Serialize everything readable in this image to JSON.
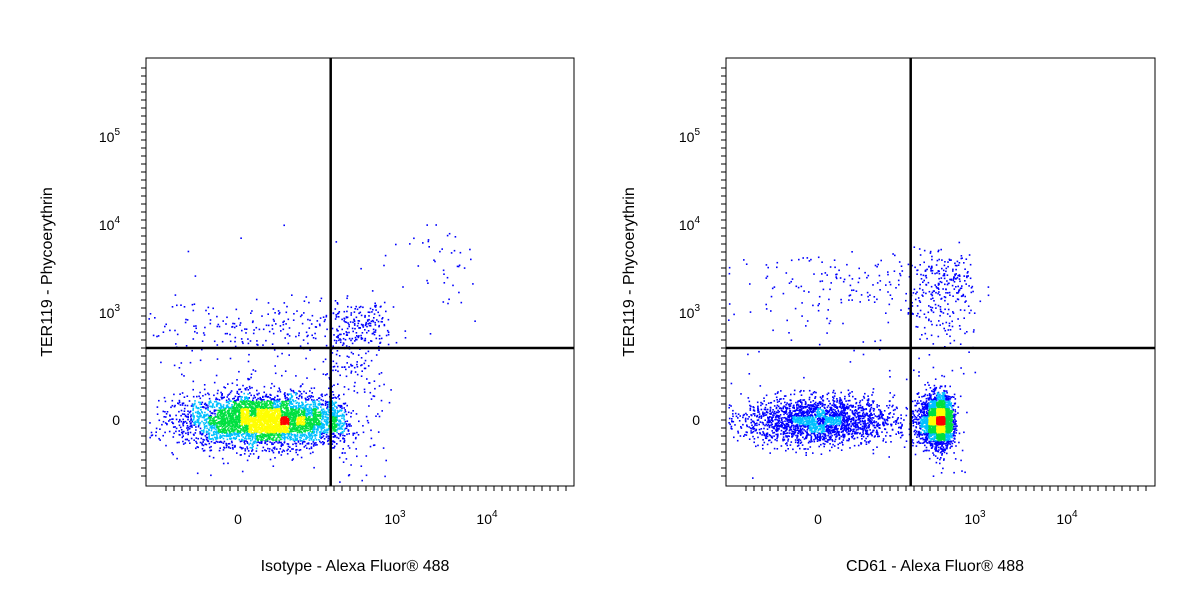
{
  "chart_data": [
    {
      "type": "scatter",
      "title": "",
      "xlabel": "Isotype - Alexa Fluor® 488",
      "ylabel": "TER119 - Phycoerythrin",
      "x_scale": "logicle",
      "y_scale": "logicle",
      "xlim": [
        -500,
        50000
      ],
      "ylim": [
        -400,
        700000
      ],
      "x_ticks": [
        {
          "base": "0",
          "exp": ""
        },
        {
          "base": "10",
          "exp": "3"
        },
        {
          "base": "10",
          "exp": "4"
        }
      ],
      "y_ticks": [
        {
          "base": "0",
          "exp": ""
        },
        {
          "base": "10",
          "exp": "3"
        },
        {
          "base": "10",
          "exp": "4"
        },
        {
          "base": "10",
          "exp": "5"
        }
      ],
      "quadrant_gate": {
        "x": 200,
        "y": 400
      },
      "density_colormap": [
        "#0000ff",
        "#00c0ff",
        "#00e040",
        "#ffff00",
        "#ff0000"
      ],
      "populations": [
        {
          "x_center": 60,
          "y_center": 0,
          "x_spread": 90,
          "y_spread": 70,
          "events": 4200
        },
        {
          "x_center": 200,
          "y_center": 500,
          "x_spread": 300,
          "y_spread": 400,
          "events": 700
        },
        {
          "x_center": 2000,
          "y_center": 3000,
          "x_spread": 2500,
          "y_spread": 3000,
          "events": 80
        }
      ]
    },
    {
      "type": "scatter",
      "title": "",
      "xlabel": "CD61 - Alexa Fluor® 488",
      "ylabel": "TER119 - Phycoerythrin",
      "x_scale": "logicle",
      "y_scale": "logicle",
      "xlim": [
        -500,
        50000
      ],
      "ylim": [
        -400,
        700000
      ],
      "x_ticks": [
        {
          "base": "0",
          "exp": ""
        },
        {
          "base": "10",
          "exp": "3"
        },
        {
          "base": "10",
          "exp": "4"
        }
      ],
      "y_ticks": [
        {
          "base": "0",
          "exp": ""
        },
        {
          "base": "10",
          "exp": "3"
        },
        {
          "base": "10",
          "exp": "4"
        },
        {
          "base": "10",
          "exp": "5"
        }
      ],
      "quadrant_gate": {
        "x": 200,
        "y": 400
      },
      "density_colormap": [
        "#0000ff",
        "#00c0ff",
        "#00e040",
        "#ffff00",
        "#ff0000"
      ],
      "populations": [
        {
          "x_center": 0,
          "y_center": 0,
          "x_spread": 80,
          "y_spread": 65,
          "events": 2200
        },
        {
          "x_center": 400,
          "y_center": 0,
          "x_spread": 80,
          "y_spread": 70,
          "events": 2600
        },
        {
          "x_center": 300,
          "y_center": 1500,
          "x_spread": 300,
          "y_spread": 1500,
          "events": 600
        }
      ]
    }
  ]
}
